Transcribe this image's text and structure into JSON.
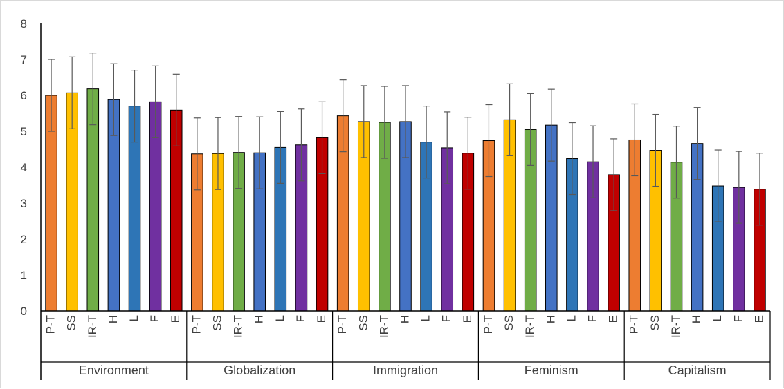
{
  "chart_data": {
    "type": "bar",
    "title": "",
    "xlabel": "",
    "ylabel": "",
    "ylim": [
      0,
      8
    ],
    "yticks": [
      "0",
      "1",
      "2",
      "3",
      "4",
      "5",
      "6",
      "7",
      "8"
    ],
    "grid": false,
    "legend": "none",
    "groups": [
      "Environment",
      "Globalization",
      "Immigration",
      "Feminism",
      "Capitalism"
    ],
    "subcategories": [
      "P-T",
      "SS",
      "IR-T",
      "H",
      "L",
      "F",
      "E"
    ],
    "subcategory_colors": [
      "#ed7d31",
      "#ffc000",
      "#70ad47",
      "#4472c4",
      "#2e75b6",
      "#7030a0",
      "#c00000"
    ],
    "values": [
      [
        6.0,
        6.07,
        6.18,
        5.88,
        5.7,
        5.82,
        5.59
      ],
      [
        4.37,
        4.38,
        4.41,
        4.4,
        4.55,
        4.62,
        4.82
      ],
      [
        5.43,
        5.27,
        5.25,
        5.27,
        4.7,
        4.54,
        4.39
      ],
      [
        4.74,
        5.32,
        5.05,
        5.17,
        4.24,
        4.15,
        3.79
      ],
      [
        4.76,
        4.47,
        4.14,
        4.66,
        3.48,
        3.44,
        3.39
      ]
    ],
    "error": 1.0
  }
}
